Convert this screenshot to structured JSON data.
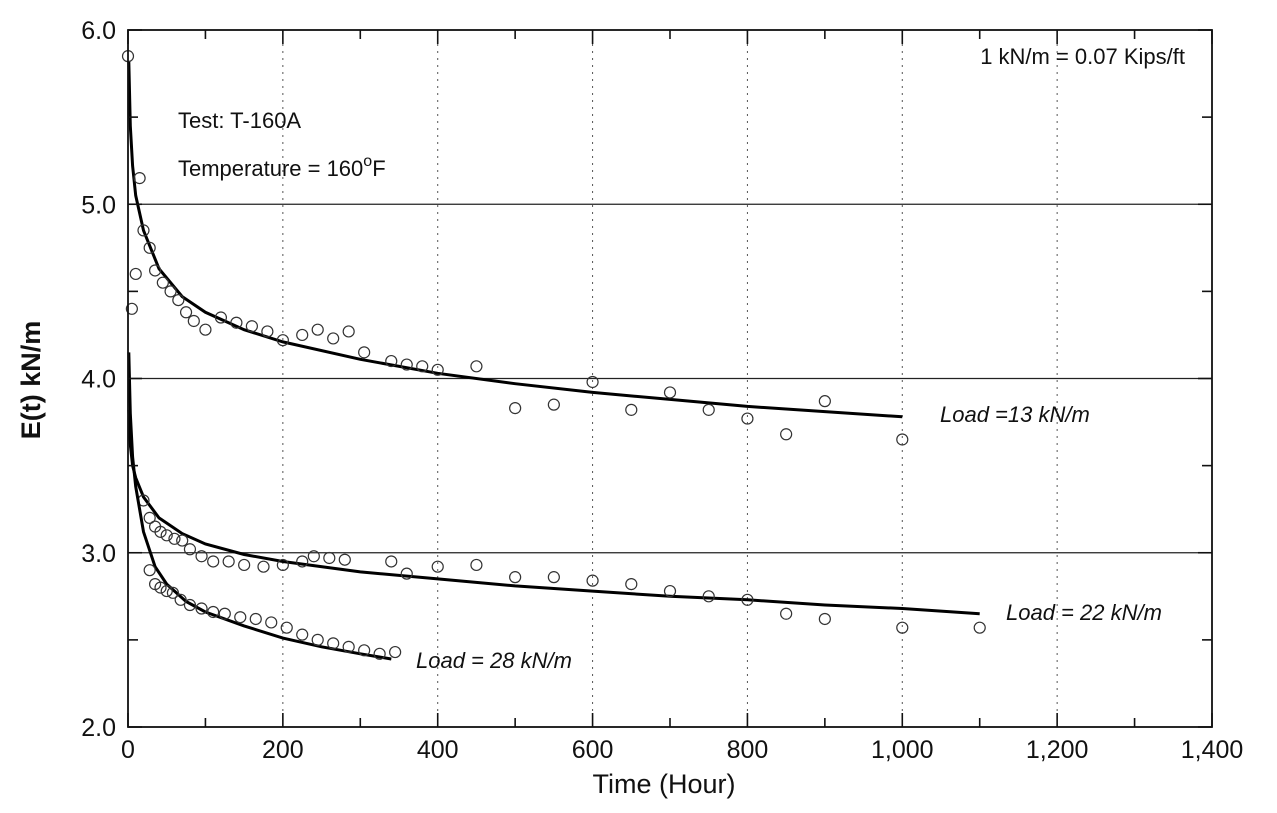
{
  "chart_data": {
    "type": "scatter",
    "title": "",
    "xlabel": "Time (Hour)",
    "ylabel": "E(t) kN/m",
    "xlim": [
      0,
      1400
    ],
    "ylim": [
      2.0,
      6.0
    ],
    "x_ticks": [
      0,
      200,
      400,
      600,
      800,
      1000,
      1200,
      1400
    ],
    "x_tick_labels": [
      "0",
      "200",
      "400",
      "600",
      "800",
      "1,000",
      "1,200",
      "1,400"
    ],
    "y_ticks": [
      2.0,
      3.0,
      4.0,
      5.0,
      6.0
    ],
    "y_tick_labels": [
      "2.0",
      "3.0",
      "4.0",
      "5.0",
      "6.0"
    ],
    "grid": "horizontal lines at 3.0, 4.0, 5.0; vertical dashed lines every 200",
    "annotations": {
      "test": "Test: T-160A",
      "temperature": "Temperature = 160",
      "temperature_sup": "o",
      "temperature_unit": "F",
      "conversion": "1 kN/m = 0.07 Kips/ft"
    },
    "series": [
      {
        "name": "Load =13 kN/m",
        "points": [
          [
            0,
            5.85
          ],
          [
            5,
            4.4
          ],
          [
            10,
            4.6
          ],
          [
            15,
            5.15
          ],
          [
            20,
            4.85
          ],
          [
            28,
            4.75
          ],
          [
            35,
            4.62
          ],
          [
            45,
            4.55
          ],
          [
            55,
            4.5
          ],
          [
            65,
            4.45
          ],
          [
            75,
            4.38
          ],
          [
            85,
            4.33
          ],
          [
            100,
            4.28
          ],
          [
            120,
            4.35
          ],
          [
            140,
            4.32
          ],
          [
            160,
            4.3
          ],
          [
            180,
            4.27
          ],
          [
            200,
            4.22
          ],
          [
            225,
            4.25
          ],
          [
            245,
            4.28
          ],
          [
            265,
            4.23
          ],
          [
            285,
            4.27
          ],
          [
            305,
            4.15
          ],
          [
            340,
            4.1
          ],
          [
            360,
            4.08
          ],
          [
            380,
            4.07
          ],
          [
            400,
            4.05
          ],
          [
            450,
            4.07
          ],
          [
            500,
            3.83
          ],
          [
            550,
            3.85
          ],
          [
            600,
            3.98
          ],
          [
            650,
            3.82
          ],
          [
            700,
            3.92
          ],
          [
            750,
            3.82
          ],
          [
            800,
            3.77
          ],
          [
            850,
            3.68
          ],
          [
            900,
            3.87
          ],
          [
            1000,
            3.65
          ]
        ],
        "fit": [
          [
            1,
            5.82
          ],
          [
            3,
            5.45
          ],
          [
            6,
            5.22
          ],
          [
            10,
            5.05
          ],
          [
            20,
            4.85
          ],
          [
            40,
            4.63
          ],
          [
            70,
            4.47
          ],
          [
            100,
            4.38
          ],
          [
            150,
            4.28
          ],
          [
            200,
            4.21
          ],
          [
            300,
            4.11
          ],
          [
            400,
            4.03
          ],
          [
            500,
            3.97
          ],
          [
            600,
            3.92
          ],
          [
            700,
            3.88
          ],
          [
            800,
            3.84
          ],
          [
            900,
            3.81
          ],
          [
            1000,
            3.78
          ]
        ]
      },
      {
        "name": "Load = 22 kN/m",
        "points": [
          [
            20,
            3.3
          ],
          [
            28,
            3.2
          ],
          [
            35,
            3.15
          ],
          [
            42,
            3.12
          ],
          [
            50,
            3.1
          ],
          [
            60,
            3.08
          ],
          [
            70,
            3.07
          ],
          [
            80,
            3.02
          ],
          [
            95,
            2.98
          ],
          [
            110,
            2.95
          ],
          [
            130,
            2.95
          ],
          [
            150,
            2.93
          ],
          [
            175,
            2.92
          ],
          [
            200,
            2.93
          ],
          [
            225,
            2.95
          ],
          [
            240,
            2.98
          ],
          [
            260,
            2.97
          ],
          [
            280,
            2.96
          ],
          [
            340,
            2.95
          ],
          [
            360,
            2.88
          ],
          [
            400,
            2.92
          ],
          [
            450,
            2.93
          ],
          [
            500,
            2.86
          ],
          [
            550,
            2.86
          ],
          [
            600,
            2.84
          ],
          [
            650,
            2.82
          ],
          [
            700,
            2.78
          ],
          [
            750,
            2.75
          ],
          [
            800,
            2.73
          ],
          [
            850,
            2.65
          ],
          [
            900,
            2.62
          ],
          [
            1000,
            2.57
          ],
          [
            1100,
            2.57
          ]
        ],
        "fit": [
          [
            1,
            3.82
          ],
          [
            3,
            3.62
          ],
          [
            6,
            3.5
          ],
          [
            10,
            3.43
          ],
          [
            20,
            3.32
          ],
          [
            40,
            3.2
          ],
          [
            70,
            3.11
          ],
          [
            100,
            3.05
          ],
          [
            150,
            2.99
          ],
          [
            200,
            2.95
          ],
          [
            300,
            2.89
          ],
          [
            400,
            2.85
          ],
          [
            500,
            2.81
          ],
          [
            600,
            2.78
          ],
          [
            700,
            2.75
          ],
          [
            800,
            2.73
          ],
          [
            900,
            2.7
          ],
          [
            1000,
            2.68
          ],
          [
            1100,
            2.65
          ]
        ]
      },
      {
        "name": "Load = 28 kN/m",
        "points": [
          [
            28,
            2.9
          ],
          [
            35,
            2.82
          ],
          [
            42,
            2.8
          ],
          [
            50,
            2.78
          ],
          [
            58,
            2.77
          ],
          [
            68,
            2.73
          ],
          [
            80,
            2.7
          ],
          [
            95,
            2.68
          ],
          [
            110,
            2.66
          ],
          [
            125,
            2.65
          ],
          [
            145,
            2.63
          ],
          [
            165,
            2.62
          ],
          [
            185,
            2.6
          ],
          [
            205,
            2.57
          ],
          [
            225,
            2.53
          ],
          [
            245,
            2.5
          ],
          [
            265,
            2.48
          ],
          [
            285,
            2.46
          ],
          [
            305,
            2.44
          ],
          [
            325,
            2.42
          ],
          [
            345,
            2.43
          ]
        ],
        "fit": [
          [
            1,
            4.15
          ],
          [
            3,
            3.8
          ],
          [
            6,
            3.55
          ],
          [
            10,
            3.38
          ],
          [
            20,
            3.12
          ],
          [
            35,
            2.92
          ],
          [
            50,
            2.82
          ],
          [
            75,
            2.72
          ],
          [
            100,
            2.66
          ],
          [
            150,
            2.58
          ],
          [
            200,
            2.51
          ],
          [
            250,
            2.46
          ],
          [
            300,
            2.42
          ],
          [
            340,
            2.39
          ]
        ]
      }
    ]
  }
}
